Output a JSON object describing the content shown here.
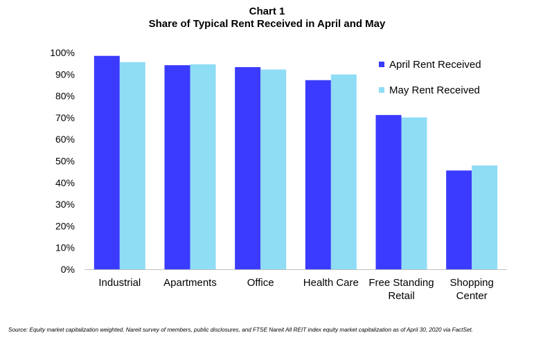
{
  "chart_data": {
    "type": "bar",
    "title": "Chart 1",
    "subtitle": "Share of Typical Rent Received in April and May",
    "categories": [
      [
        "Industrial"
      ],
      [
        "Apartments"
      ],
      [
        "Office"
      ],
      [
        "Health Care"
      ],
      [
        "Free Standing",
        "Retail"
      ],
      [
        "Shopping",
        "Center"
      ]
    ],
    "series": [
      {
        "name": "April Rent Received",
        "color": "#3b3bff",
        "values": [
          98.5,
          94.2,
          93.3,
          87.3,
          71.2,
          45.6
        ]
      },
      {
        "name": "May Rent Received",
        "color": "#8fdcf5",
        "values": [
          95.6,
          94.6,
          92.2,
          89.9,
          70.1,
          47.9
        ]
      }
    ],
    "ylim": [
      0,
      100
    ],
    "yticks": [
      "0%",
      "10%",
      "20%",
      "30%",
      "40%",
      "50%",
      "60%",
      "70%",
      "80%",
      "90%",
      "100%"
    ],
    "grid": false,
    "legend_position": "top-right"
  },
  "source_note": "Source: Equity market capitalization weighted. Nareit survey of members, public disclosures, and FTSE Nareit All REIT index equity market capitalization as of April 30, 2020 via FactSet."
}
